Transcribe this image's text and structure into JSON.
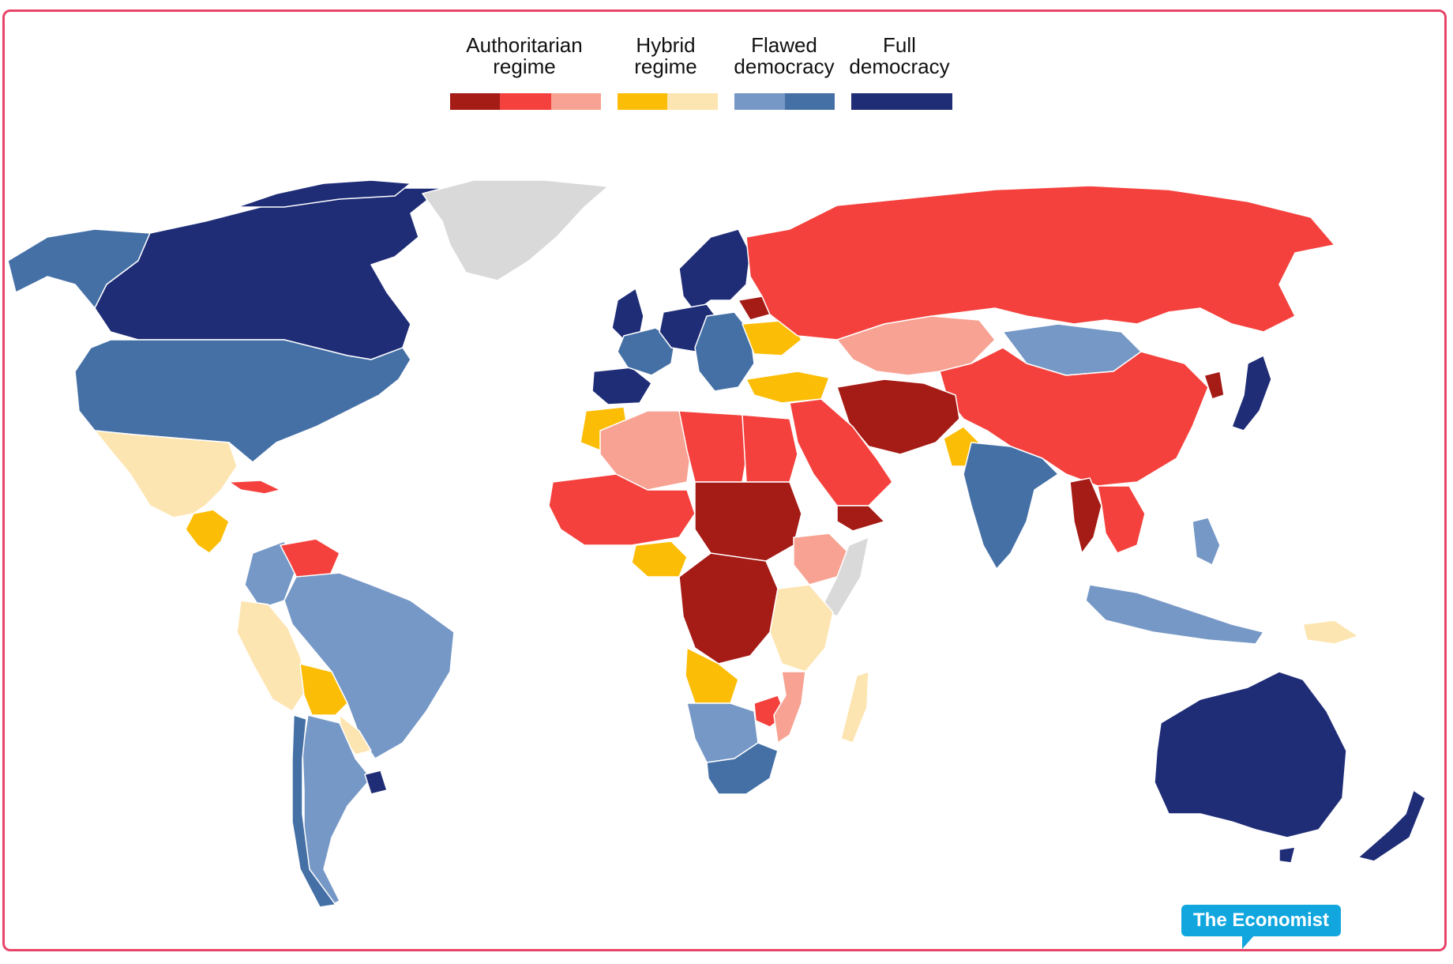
{
  "legend": {
    "groups": [
      {
        "label_line1": "Authoritarian",
        "label_line2": "regime",
        "colors": [
          "#a51b15",
          "#f4413d",
          "#f7a292"
        ]
      },
      {
        "label_line1": "Hybrid",
        "label_line2": "regime",
        "colors": [
          "#fcbd07",
          "#fde5b1"
        ]
      },
      {
        "label_line1": "Flawed",
        "label_line2": "democracy",
        "colors": [
          "#7698c6",
          "#4570a6"
        ]
      },
      {
        "label_line1": "Full",
        "label_line2": "democracy",
        "colors": [
          "#1f2d77"
        ]
      }
    ]
  },
  "colors": {
    "no_data": "#d9d9d9",
    "frame": "#e8446a",
    "badge": "#11a6de"
  },
  "map": {
    "regions": [
      {
        "name": "canada",
        "category": "full"
      },
      {
        "name": "usa",
        "category": "flawed-2"
      },
      {
        "name": "alaska",
        "category": "flawed-2"
      },
      {
        "name": "greenland",
        "category": "no-data"
      },
      {
        "name": "mexico",
        "category": "hybrid-2"
      },
      {
        "name": "central-america",
        "category": "hybrid-1"
      },
      {
        "name": "cuba",
        "category": "auth-2"
      },
      {
        "name": "colombia",
        "category": "flawed-1"
      },
      {
        "name": "venezuela",
        "category": "auth-2"
      },
      {
        "name": "brazil",
        "category": "flawed-1"
      },
      {
        "name": "peru-ecuador",
        "category": "hybrid-2"
      },
      {
        "name": "bolivia",
        "category": "hybrid-1"
      },
      {
        "name": "paraguay",
        "category": "hybrid-2"
      },
      {
        "name": "argentina",
        "category": "flawed-1"
      },
      {
        "name": "chile",
        "category": "flawed-2"
      },
      {
        "name": "uruguay",
        "category": "full"
      },
      {
        "name": "scandinavia",
        "category": "full"
      },
      {
        "name": "uk-ireland",
        "category": "full"
      },
      {
        "name": "iberia",
        "category": "full"
      },
      {
        "name": "france",
        "category": "flawed-2"
      },
      {
        "name": "central-europe",
        "category": "full"
      },
      {
        "name": "eastern-europe",
        "category": "flawed-2"
      },
      {
        "name": "ukraine",
        "category": "hybrid-1"
      },
      {
        "name": "belarus",
        "category": "auth-1"
      },
      {
        "name": "turkey",
        "category": "hybrid-1"
      },
      {
        "name": "russia",
        "category": "auth-2"
      },
      {
        "name": "kazakhstan",
        "category": "auth-3"
      },
      {
        "name": "mongolia",
        "category": "flawed-1"
      },
      {
        "name": "china",
        "category": "auth-2"
      },
      {
        "name": "korea-north",
        "category": "auth-1"
      },
      {
        "name": "japan",
        "category": "full"
      },
      {
        "name": "iran-afghanistan",
        "category": "auth-1"
      },
      {
        "name": "pakistan",
        "category": "hybrid-1"
      },
      {
        "name": "middle-east",
        "category": "auth-2"
      },
      {
        "name": "yemen",
        "category": "auth-1"
      },
      {
        "name": "india",
        "category": "flawed-2"
      },
      {
        "name": "myanmar",
        "category": "auth-1"
      },
      {
        "name": "southeast-asia",
        "category": "auth-2"
      },
      {
        "name": "indonesia",
        "category": "flawed-1"
      },
      {
        "name": "png",
        "category": "hybrid-2"
      },
      {
        "name": "australia",
        "category": "full"
      },
      {
        "name": "new-zealand",
        "category": "full"
      },
      {
        "name": "morocco",
        "category": "hybrid-1"
      },
      {
        "name": "algeria",
        "category": "auth-3"
      },
      {
        "name": "libya",
        "category": "auth-2"
      },
      {
        "name": "egypt",
        "category": "auth-2"
      },
      {
        "name": "sahel",
        "category": "auth-2"
      },
      {
        "name": "chad-sudan",
        "category": "auth-1"
      },
      {
        "name": "nigeria",
        "category": "hybrid-1"
      },
      {
        "name": "ethiopia",
        "category": "auth-3"
      },
      {
        "name": "somalia",
        "category": "no-data"
      },
      {
        "name": "central-africa",
        "category": "auth-1"
      },
      {
        "name": "east-africa",
        "category": "hybrid-2"
      },
      {
        "name": "angola",
        "category": "hybrid-1"
      },
      {
        "name": "namibia-botswana",
        "category": "flawed-1"
      },
      {
        "name": "south-africa",
        "category": "flawed-2"
      },
      {
        "name": "zimbabwe",
        "category": "auth-2"
      },
      {
        "name": "mozambique",
        "category": "auth-3"
      },
      {
        "name": "madagascar",
        "category": "hybrid-2"
      }
    ]
  },
  "branding": {
    "badge_label": "The Economist"
  }
}
